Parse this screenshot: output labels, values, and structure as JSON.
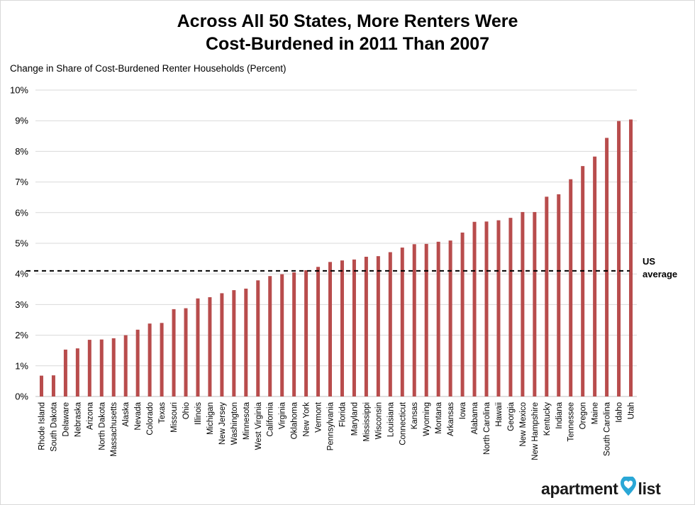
{
  "title_line1": "Across All 50 States, More Renters Were",
  "title_line2": "Cost-Burdened in 2011 Than 2007",
  "y_axis_label": "Change in Share of Cost-Burdened Renter Households (Percent)",
  "us_average_label_line1": "US",
  "us_average_label_line2": "average",
  "logo_word1": "apartment",
  "logo_word2": "list",
  "colors": {
    "bar": "#b84c4c",
    "grid": "#d9d9d9",
    "avg_line": "#000000",
    "logo_pin": "#2aa7d6"
  },
  "chart_data": {
    "type": "bar",
    "title": "Across All 50 States, More Renters Were Cost-Burdened in 2011 Than 2007",
    "xlabel": "",
    "ylabel": "Change in Share of Cost-Burdened Renter Households (Percent)",
    "ylim": [
      0,
      10
    ],
    "yticks": [
      0,
      1,
      2,
      3,
      4,
      5,
      6,
      7,
      8,
      9,
      10
    ],
    "ytick_labels": [
      "0%",
      "1%",
      "2%",
      "3%",
      "4%",
      "5%",
      "6%",
      "7%",
      "8%",
      "9%",
      "10%"
    ],
    "grid": true,
    "us_average": 4.1,
    "categories": [
      "Rhode Island",
      "South Dakota",
      "Delaware",
      "Nebraska",
      "Arizona",
      "North Dakota",
      "Massachusetts",
      "Alaska",
      "Nevada",
      "Colorado",
      "Texas",
      "Missouri",
      "Ohio",
      "Illinois",
      "Michigan",
      "New Jersey",
      "Washington",
      "Minnesota",
      "West Virginia",
      "California",
      "Virginia",
      "Oklahoma",
      "New York",
      "Vermont",
      "Pennsylvania",
      "Florida",
      "Maryland",
      "Mississippi",
      "Wisconsin",
      "Louisiana",
      "Connecticut",
      "Kansas",
      "Wyoming",
      "Montana",
      "Arkansas",
      "Iowa",
      "Alabama",
      "North Carolina",
      "Hawaii",
      "Georgia",
      "New Mexico",
      "New Hampshire",
      "Kentucky",
      "Indiana",
      "Tennessee",
      "Oregon",
      "Maine",
      "South Carolina",
      "Idaho",
      "Utah"
    ],
    "values": [
      0.68,
      0.69,
      1.53,
      1.57,
      1.85,
      1.86,
      1.9,
      2.0,
      2.18,
      2.38,
      2.4,
      2.85,
      2.88,
      3.2,
      3.24,
      3.37,
      3.47,
      3.52,
      3.79,
      3.93,
      3.99,
      4.05,
      4.12,
      4.23,
      4.39,
      4.44,
      4.47,
      4.56,
      4.58,
      4.71,
      4.86,
      4.97,
      4.98,
      5.05,
      5.09,
      5.35,
      5.7,
      5.71,
      5.75,
      5.83,
      6.02,
      6.02,
      6.52,
      6.6,
      7.09,
      7.52,
      7.83,
      8.44,
      8.99,
      9.04
    ]
  }
}
